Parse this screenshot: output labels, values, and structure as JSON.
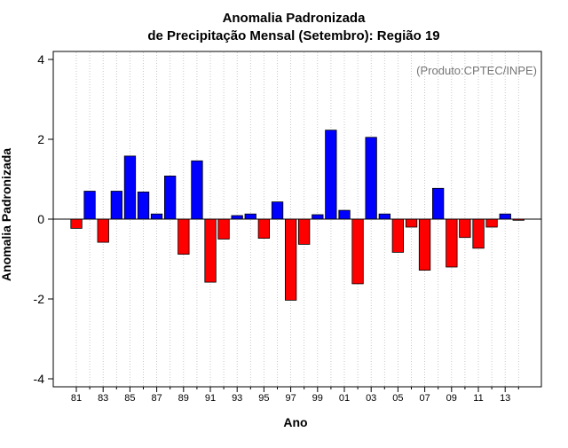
{
  "chart_data": {
    "type": "bar",
    "title": "Anomalia Padronizada",
    "subtitle": "de Precipitação Mensal (Setembro): Região 19",
    "xlabel": "Ano",
    "ylabel": "Anomalia Padronizada",
    "credit": "(Produto:CPTEC/INPE)",
    "ylim": [
      -4.2,
      4.2
    ],
    "yticks": [
      -4,
      -2,
      0,
      2,
      4
    ],
    "ytick_labels": [
      "-4",
      "-2",
      "0",
      "2",
      "4"
    ],
    "x_tick_labels": [
      "81",
      "83",
      "85",
      "87",
      "89",
      "91",
      "93",
      "95",
      "97",
      "99",
      "01",
      "03",
      "05",
      "07",
      "09",
      "11",
      "13"
    ],
    "categories": [
      "1981",
      "1982",
      "1983",
      "1984",
      "1985",
      "1986",
      "1987",
      "1988",
      "1989",
      "1990",
      "1991",
      "1992",
      "1993",
      "1994",
      "1995",
      "1996",
      "1997",
      "1998",
      "1999",
      "2000",
      "2001",
      "2002",
      "2003",
      "2004",
      "2005",
      "2006",
      "2007",
      "2008",
      "2009",
      "2010",
      "2011",
      "2012",
      "2013",
      "2014"
    ],
    "values": [
      -0.23,
      0.7,
      -0.58,
      0.7,
      1.58,
      0.68,
      0.13,
      1.08,
      -0.88,
      1.46,
      -1.58,
      -0.5,
      0.09,
      0.13,
      -0.48,
      0.43,
      -2.03,
      -0.63,
      0.11,
      2.23,
      0.22,
      -1.62,
      2.05,
      0.13,
      -0.83,
      -0.2,
      -1.28,
      0.77,
      -1.2,
      -0.46,
      -0.73,
      -0.2,
      0.13,
      -0.03
    ],
    "colors": {
      "positive": "#0000ff",
      "negative": "#ff0000",
      "grid": "#bbbbbb",
      "credit": "#777777"
    },
    "grid": "vertical dotted",
    "legend": "none"
  }
}
